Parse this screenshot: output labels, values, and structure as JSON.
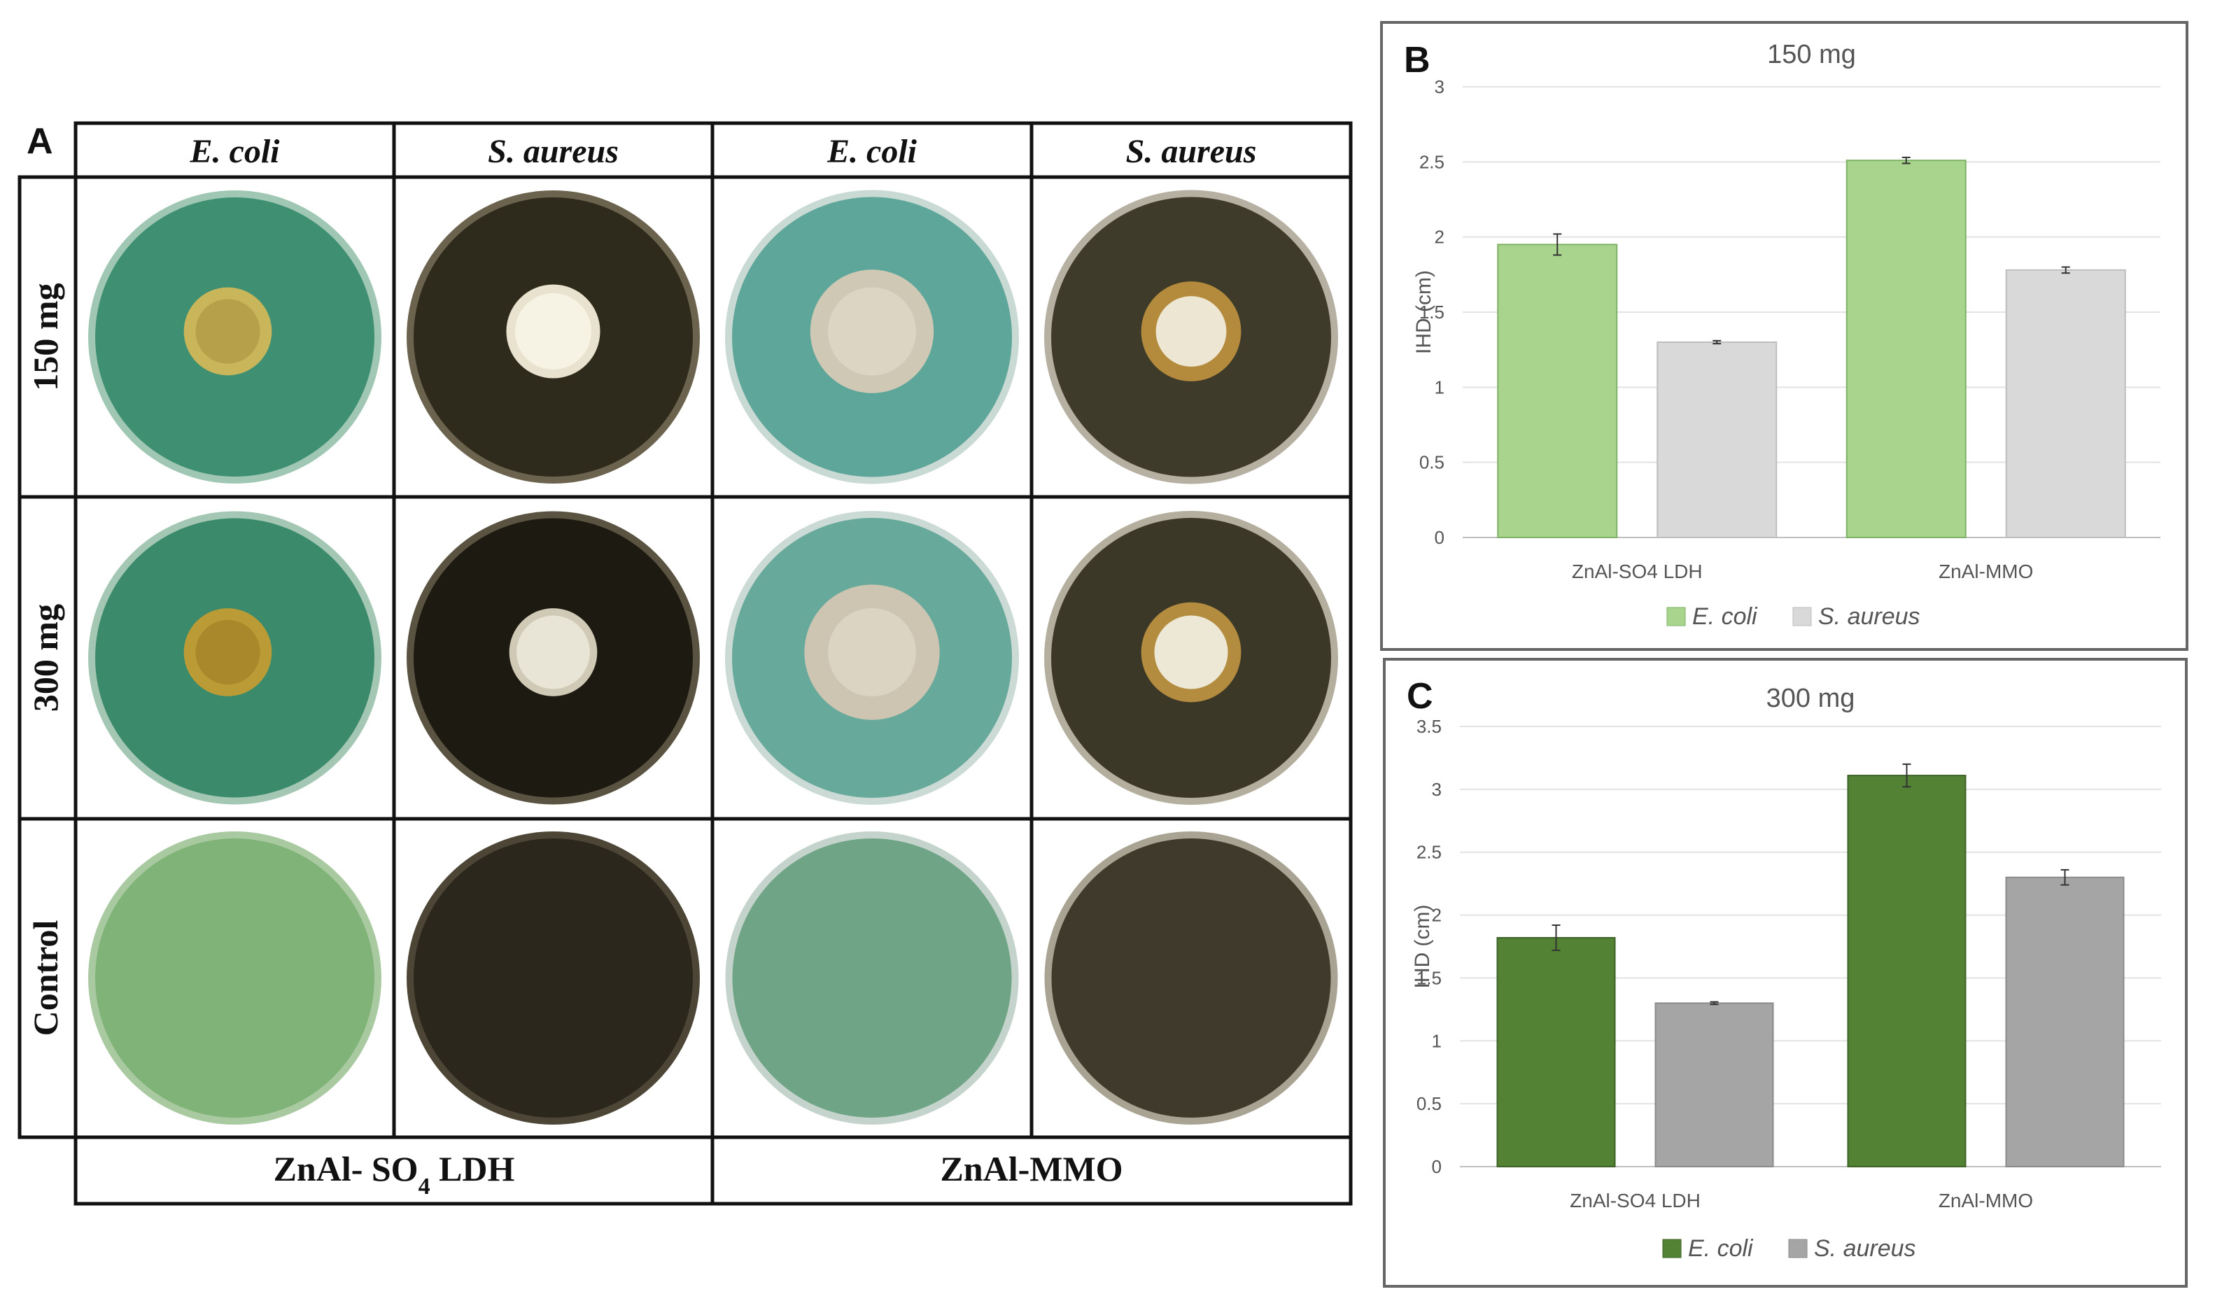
{
  "panel_a": {
    "letter": "A",
    "col_headers": [
      "E. coli",
      "S. aureus",
      "E. coli",
      "S. aureus"
    ],
    "row_labels": [
      "150 mg",
      "300 mg",
      "Control"
    ],
    "footer_labels": [
      {
        "main": "ZnAl- SO",
        "sub": "4",
        "tail": " LDH"
      },
      {
        "main": "ZnAl-MMO",
        "sub": "",
        "tail": ""
      }
    ],
    "plates": [
      [
        {
          "name": "plate-150-ldh-ecoli",
          "bg": "#3f8f72",
          "rim": "#9fc7b4",
          "zone": "#c9b55a",
          "zone_r": 0.3,
          "disc": "#b7a04a",
          "disc_r": 0.22
        },
        {
          "name": "plate-150-ldh-saureus",
          "bg": "#2e2a1c",
          "rim": "#6b634d",
          "zone": "#e8e2cf",
          "zone_r": 0.32,
          "disc": "#f6f2e4",
          "disc_r": 0.26
        },
        {
          "name": "plate-150-mmo-ecoli",
          "bg": "#5fa69a",
          "rim": "#c9d9d3",
          "zone": "#cfc8b5",
          "zone_r": 0.42,
          "disc": "#dcd5c4",
          "disc_r": 0.3
        },
        {
          "name": "plate-150-mmo-saureus",
          "bg": "#3f3b2a",
          "rim": "#b5b0a2",
          "zone": "#b48a3c",
          "zone_r": 0.34,
          "disc": "#ece6d2",
          "disc_r": 0.24
        }
      ],
      [
        {
          "name": "plate-300-ldh-ecoli",
          "bg": "#3b8a6b",
          "rim": "#a3c7b3",
          "zone": "#bb9b35",
          "zone_r": 0.3,
          "disc": "#a8882a",
          "disc_r": 0.22
        },
        {
          "name": "plate-300-ldh-saureus",
          "bg": "#1d1a12",
          "rim": "#5a5342",
          "zone": "#cfc9b6",
          "zone_r": 0.3,
          "disc": "#e9e5d6",
          "disc_r": 0.25
        },
        {
          "name": "plate-300-mmo-ecoli",
          "bg": "#67a99b",
          "rim": "#cbdad4",
          "zone": "#cdc5b1",
          "zone_r": 0.46,
          "disc": "#dbd4c2",
          "disc_r": 0.3
        },
        {
          "name": "plate-300-mmo-saureus",
          "bg": "#3c3827",
          "rim": "#b4ae9f",
          "zone": "#b38c3f",
          "zone_r": 0.34,
          "disc": "#ede7d5",
          "disc_r": 0.25
        }
      ],
      [
        {
          "name": "plate-control-ldh-ecoli",
          "bg": "#7fb377",
          "rim": "#a9c9a0",
          "zone": "",
          "zone_r": 0,
          "disc": "",
          "disc_r": 0
        },
        {
          "name": "plate-control-ldh-saureus",
          "bg": "#2c271c",
          "rim": "#4d4637",
          "zone": "",
          "zone_r": 0,
          "disc": "",
          "disc_r": 0
        },
        {
          "name": "plate-control-mmo-ecoli",
          "bg": "#6fa586",
          "rim": "#c4d3cb",
          "zone": "",
          "zone_r": 0,
          "disc": "",
          "disc_r": 0
        },
        {
          "name": "plate-control-mmo-saureus",
          "bg": "#3f3a2b",
          "rim": "#a9a393",
          "zone": "",
          "zone_r": 0,
          "disc": "",
          "disc_r": 0
        }
      ]
    ]
  },
  "chart_data": [
    {
      "panel_letter": "B",
      "type": "bar",
      "title": "150 mg",
      "xlabel": "",
      "ylabel": "IHD (cm)",
      "categories": [
        "ZnAl-SO4 LDH",
        "ZnAl-MMO"
      ],
      "series": [
        {
          "name": "E. coli",
          "values": [
            1.95,
            2.51
          ],
          "errors": [
            0.07,
            0.02
          ],
          "color": "#a9d48e",
          "stroke": "#7fb266"
        },
        {
          "name": "S. aureus",
          "values": [
            1.3,
            1.78
          ],
          "errors": [
            0.01,
            0.02
          ],
          "color": "#d9d9d9",
          "stroke": "#bdbdbd"
        }
      ],
      "ylim": [
        0,
        3
      ],
      "yticks": [
        "0",
        "0.5",
        "1",
        "1.5",
        "2",
        "2.5",
        "3"
      ],
      "grid": true,
      "legend": "bottom"
    },
    {
      "panel_letter": "C",
      "type": "bar",
      "title": "300 mg",
      "xlabel": "",
      "ylabel": "IHD (cm)",
      "categories": [
        "ZnAl-SO4 LDH",
        "ZnAl-MMO"
      ],
      "series": [
        {
          "name": "E. coli",
          "values": [
            1.82,
            3.11
          ],
          "errors": [
            0.1,
            0.09
          ],
          "color": "#548235",
          "stroke": "#3d6126"
        },
        {
          "name": "S. aureus",
          "values": [
            1.3,
            2.3
          ],
          "errors": [
            0.01,
            0.06
          ],
          "color": "#a5a5a5",
          "stroke": "#8a8a8a"
        }
      ],
      "ylim": [
        0,
        3.5
      ],
      "yticks": [
        "0",
        "0.5",
        "1",
        "1.5",
        "2",
        "2.5",
        "3",
        "3.5"
      ],
      "grid": true,
      "legend": "bottom"
    }
  ]
}
